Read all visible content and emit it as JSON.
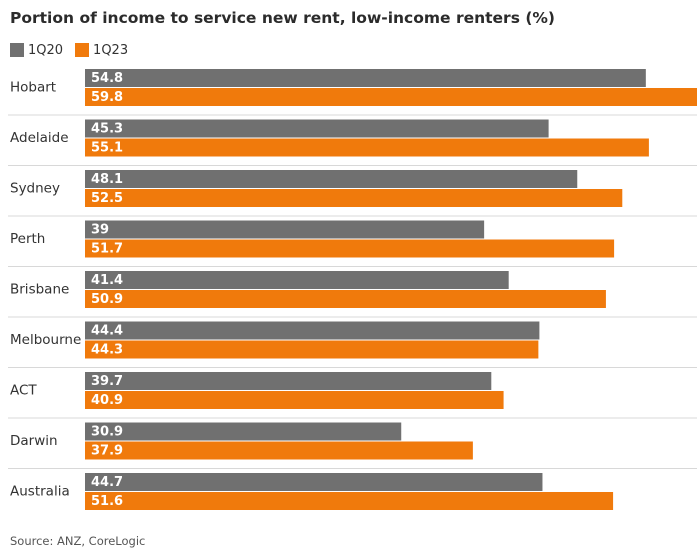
{
  "chart_data": {
    "type": "bar",
    "orientation": "horizontal",
    "title": "Portion of income to service new rent, low-income renters (%)",
    "categories": [
      "Hobart",
      "Adelaide",
      "Sydney",
      "Perth",
      "Brisbane",
      "Melbourne",
      "ACT",
      "Darwin",
      "Australia"
    ],
    "series": [
      {
        "name": "1Q20",
        "color": "#707070",
        "values": [
          54.8,
          45.3,
          48.1,
          39,
          41.4,
          44.4,
          39.7,
          30.9,
          44.7
        ]
      },
      {
        "name": "1Q23",
        "color": "#f07a0c",
        "values": [
          59.8,
          55.1,
          52.5,
          51.7,
          50.9,
          44.3,
          40.9,
          37.9,
          51.6
        ]
      }
    ],
    "xlim": [
      0,
      59.8
    ],
    "legend_position": "top-left",
    "grid": false,
    "source": "Source: ANZ, CoreLogic"
  }
}
